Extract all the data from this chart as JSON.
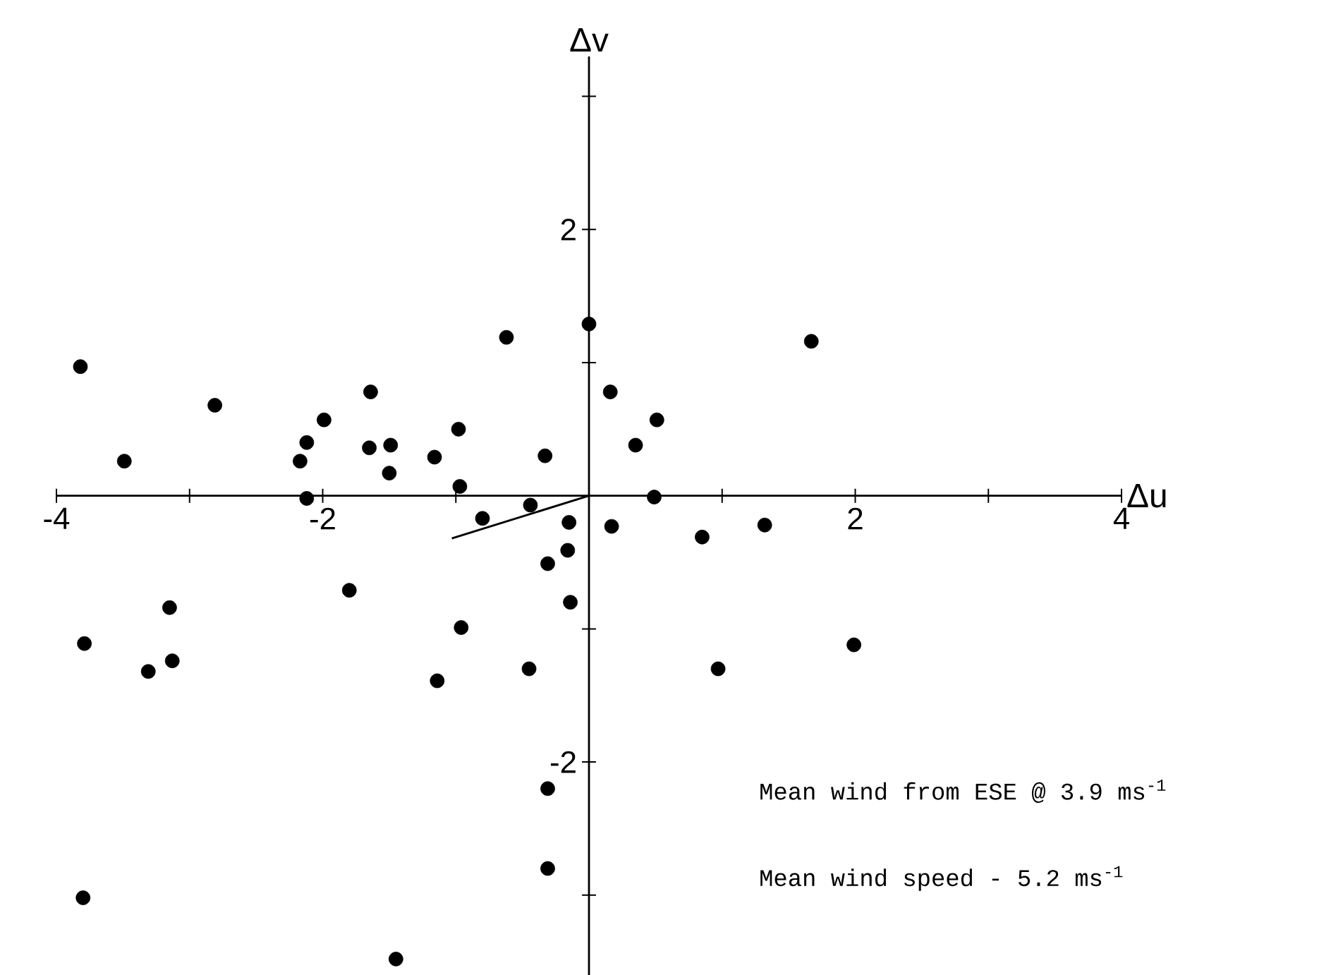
{
  "chart_data": {
    "type": "scatter",
    "xlabel": "Δu",
    "ylabel": "Δv",
    "xlim": [
      -4,
      4
    ],
    "ylim": [
      -3.6,
      3.3
    ],
    "xticks": [
      -4,
      {
        "value": -3,
        "label": null
      },
      -2,
      {
        "value": -1,
        "label": null
      },
      {
        "value": 1,
        "label": null
      },
      2,
      {
        "value": 3,
        "label": null
      },
      4
    ],
    "yticks": [
      {
        "value": -3,
        "label": null
      },
      -2,
      {
        "value": -1,
        "label": null
      },
      {
        "value": 1,
        "label": null
      },
      2,
      {
        "value": 3,
        "label": null
      }
    ],
    "marker": "circle",
    "series": [
      {
        "color": "#000000",
        "x": [
          -3.82,
          -3.49,
          -2.81,
          -1.99,
          -2.12,
          -2.17,
          -2.12,
          -1.64,
          -1.65,
          -1.49,
          -1.5,
          -1.16,
          -0.98,
          -0.97,
          -0.62,
          -0.33,
          0.0,
          -0.8,
          -0.44,
          -0.15,
          -0.16,
          -0.31,
          -0.14,
          -1.8,
          -3.15,
          -3.79,
          -3.31,
          -3.13,
          -0.96,
          -1.14,
          -0.45,
          0.16,
          0.51,
          0.35,
          0.49,
          0.17,
          0.85,
          1.32,
          1.67,
          0.97,
          1.99,
          -0.31,
          -0.31,
          -3.8,
          -1.45
        ],
        "values": [
          0.97,
          0.26,
          0.68,
          0.57,
          0.4,
          0.26,
          -0.02,
          0.78,
          0.36,
          0.38,
          0.17,
          0.29,
          0.5,
          0.07,
          1.19,
          0.3,
          1.29,
          -0.17,
          -0.07,
          -0.2,
          -0.41,
          -0.51,
          -0.8,
          -0.71,
          -0.84,
          -1.11,
          -1.32,
          -1.24,
          -0.99,
          -1.39,
          -1.3,
          0.78,
          0.57,
          0.38,
          -0.01,
          -0.23,
          -0.31,
          -0.22,
          1.16,
          -1.3,
          -1.12,
          -2.2,
          -2.8,
          -3.02,
          -3.48
        ]
      },
      {
        "type": "line",
        "marker": "none",
        "color": "#000000",
        "x": [
          -1.03,
          0
        ],
        "values": [
          -0.32,
          0
        ]
      }
    ],
    "annotations": [
      "Mean wind from ESE @ 3.9 ms$^{-1}$",
      "Mean wind speed - 5.2 ms$^{-1}$"
    ]
  }
}
